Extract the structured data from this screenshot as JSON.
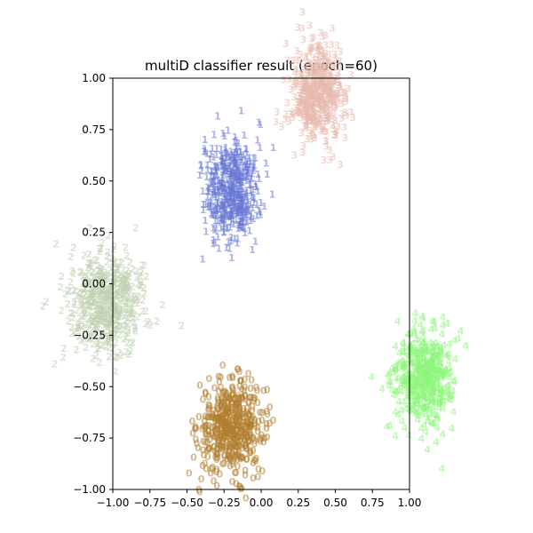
{
  "chart_data": {
    "type": "scatter",
    "title": "multiD classifier result (epoch=60)",
    "xlabel": "",
    "ylabel": "",
    "xlim": [
      -1.0,
      1.0
    ],
    "ylim": [
      -1.0,
      1.0
    ],
    "xticks": [
      "−1.00",
      "−0.75",
      "−0.50",
      "−0.25",
      "0.00",
      "0.25",
      "0.50",
      "0.75",
      "1.00"
    ],
    "yticks": [
      "−1.00",
      "−0.75",
      "−0.50",
      "−0.25",
      "0.00",
      "0.25",
      "0.50",
      "0.75",
      "1.00"
    ],
    "grid": false,
    "marker": "digit text glyph per point (class label)",
    "series": [
      {
        "label": "0",
        "color": "#b07d2d",
        "center": [
          -0.2,
          -0.7
        ],
        "spread": [
          0.11,
          0.11
        ],
        "count": 500
      },
      {
        "label": "1",
        "color": "#6676d6",
        "center": [
          -0.2,
          0.45
        ],
        "spread": [
          0.09,
          0.13
        ],
        "count": 500
      },
      {
        "label": "2",
        "color": "#bdd1b0",
        "center": [
          -1.05,
          -0.1
        ],
        "spread": [
          0.13,
          0.12
        ],
        "count": 500
      },
      {
        "label": "3",
        "color": "#e8b9ad",
        "center": [
          0.38,
          0.92
        ],
        "spread": [
          0.09,
          0.11
        ],
        "count": 500
      },
      {
        "label": "4",
        "color": "#8ef57c",
        "center": [
          1.1,
          -0.45
        ],
        "spread": [
          0.1,
          0.12
        ],
        "count": 500
      }
    ]
  }
}
